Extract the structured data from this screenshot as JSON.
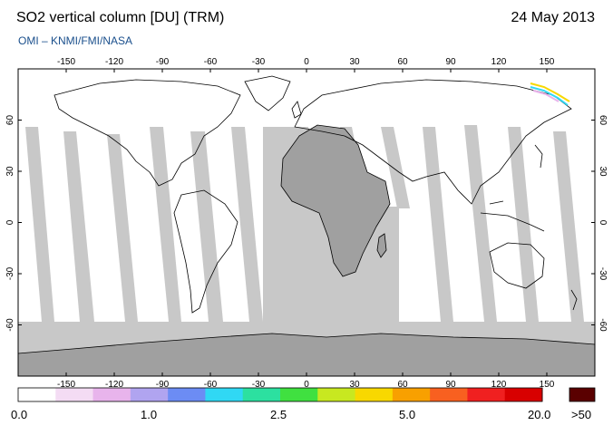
{
  "header": {
    "title": "SO2 vertical column [DU] (TRM)",
    "date": "24 May 2013",
    "credit": "OMI  –  KNMI/FMI/NASA"
  },
  "map": {
    "lon_ticks": [
      -150,
      -120,
      -90,
      -60,
      -30,
      0,
      30,
      60,
      90,
      120,
      150
    ],
    "lat_ticks": [
      60,
      30,
      0,
      -30,
      -60
    ],
    "lon_range": [
      -180,
      180
    ],
    "lat_range": [
      -90,
      90
    ],
    "no_data_color": "#c8c8c8",
    "land_no_data_color": "#a0a0a0"
  },
  "colorbar": {
    "labels": [
      "0.0",
      "1.0",
      "2.5",
      "5.0",
      "20.0"
    ],
    "overflow_label": ">50",
    "colors": [
      "#ffffff",
      "#f4dcf4",
      "#e8b4ec",
      "#b0a4f0",
      "#6c8cf4",
      "#30d8f4",
      "#2ce0a0",
      "#40e040",
      "#c8e820",
      "#f8d800",
      "#f8a000",
      "#f86020",
      "#f02020",
      "#d80000"
    ],
    "overflow_color": "#5a0000"
  }
}
